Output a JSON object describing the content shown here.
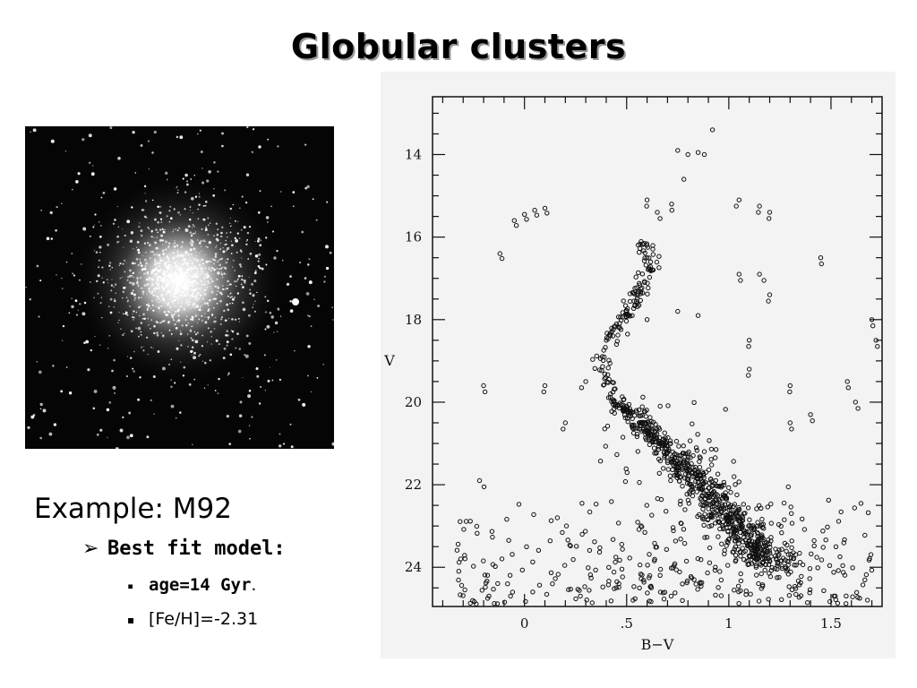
{
  "slide": {
    "title": "Globular clusters",
    "example": "Example: M92",
    "bullet_marker": "➢",
    "sub_marker": "▪",
    "best_fit_label": "Best fit model:",
    "age_label": "age=14 Gyr",
    "age_trailing": ".",
    "metallicity_label": "[Fe/H]=-2.31"
  },
  "photo": {
    "description_icon": "globular-cluster-photo"
  },
  "chart_data": {
    "type": "scatter",
    "title": "",
    "xlabel": "B−V",
    "ylabel": "V",
    "xlim": [
      -0.45,
      1.75
    ],
    "ylim": [
      24.95,
      12.6
    ],
    "y_inverted": true,
    "x_ticks": [
      0,
      0.5,
      1,
      1.5
    ],
    "x_tick_labels": [
      "0",
      ".5",
      "1",
      "1.5"
    ],
    "y_ticks": [
      14,
      16,
      18,
      20,
      22,
      24
    ],
    "y_tick_labels": [
      "14",
      "16",
      "18",
      "20",
      "22",
      "24"
    ],
    "grid": false,
    "legend": "none",
    "marker": "open-circle",
    "colors": {
      "marker": "#111111",
      "background": "#f3f3f3"
    },
    "sequences": {
      "red_giant_branch": [
        [
          0.58,
          16.1
        ],
        [
          0.62,
          16.5
        ],
        [
          0.6,
          17.0
        ],
        [
          0.55,
          17.4
        ],
        [
          0.5,
          17.8
        ],
        [
          0.45,
          18.2
        ],
        [
          0.4,
          18.6
        ],
        [
          0.38,
          19.0
        ],
        [
          0.4,
          19.6
        ],
        [
          0.45,
          20.0
        ]
      ],
      "main_sequence": [
        [
          0.45,
          20.0
        ],
        [
          0.55,
          20.4
        ],
        [
          0.65,
          20.9
        ],
        [
          0.75,
          21.4
        ],
        [
          0.85,
          21.9
        ],
        [
          0.92,
          22.4
        ],
        [
          1.0,
          22.8
        ],
        [
          1.08,
          23.2
        ],
        [
          1.15,
          23.6
        ],
        [
          1.22,
          24.0
        ]
      ],
      "horizontal_branch": [
        [
          -0.12,
          16.4
        ],
        [
          -0.05,
          15.6
        ],
        [
          0.0,
          15.45
        ],
        [
          0.05,
          15.35
        ],
        [
          0.1,
          15.3
        ]
      ],
      "asymptotic_giant": [
        [
          0.45,
          18.6
        ],
        [
          0.6,
          18.0
        ],
        [
          0.75,
          17.8
        ],
        [
          0.85,
          17.9
        ]
      ],
      "upper_giants": [
        [
          0.75,
          13.9
        ],
        [
          0.8,
          14.0
        ],
        [
          0.85,
          13.95
        ],
        [
          0.88,
          14.0
        ],
        [
          0.92,
          13.4
        ],
        [
          0.78,
          14.6
        ]
      ]
    },
    "field_points": [
      [
        0.1,
        19.6
      ],
      [
        0.3,
        19.5
      ],
      [
        0.2,
        20.5
      ],
      [
        1.05,
        16.9
      ],
      [
        1.15,
        16.9
      ],
      [
        1.2,
        17.4
      ],
      [
        1.1,
        18.5
      ],
      [
        1.3,
        20.5
      ],
      [
        1.4,
        20.3
      ],
      [
        1.05,
        15.1
      ],
      [
        1.15,
        15.25
      ],
      [
        1.2,
        15.4
      ],
      [
        1.45,
        16.5
      ],
      [
        1.1,
        19.2
      ],
      [
        1.3,
        19.6
      ],
      [
        -0.2,
        19.6
      ],
      [
        -0.22,
        21.9
      ],
      [
        1.7,
        18.0
      ],
      [
        1.72,
        18.5
      ],
      [
        1.75,
        19.0
      ],
      [
        1.58,
        19.5
      ],
      [
        1.62,
        20.0
      ],
      [
        0.6,
        15.1
      ],
      [
        0.65,
        15.4
      ],
      [
        0.72,
        15.2
      ]
    ],
    "scatter_points_generated": 1500
  }
}
